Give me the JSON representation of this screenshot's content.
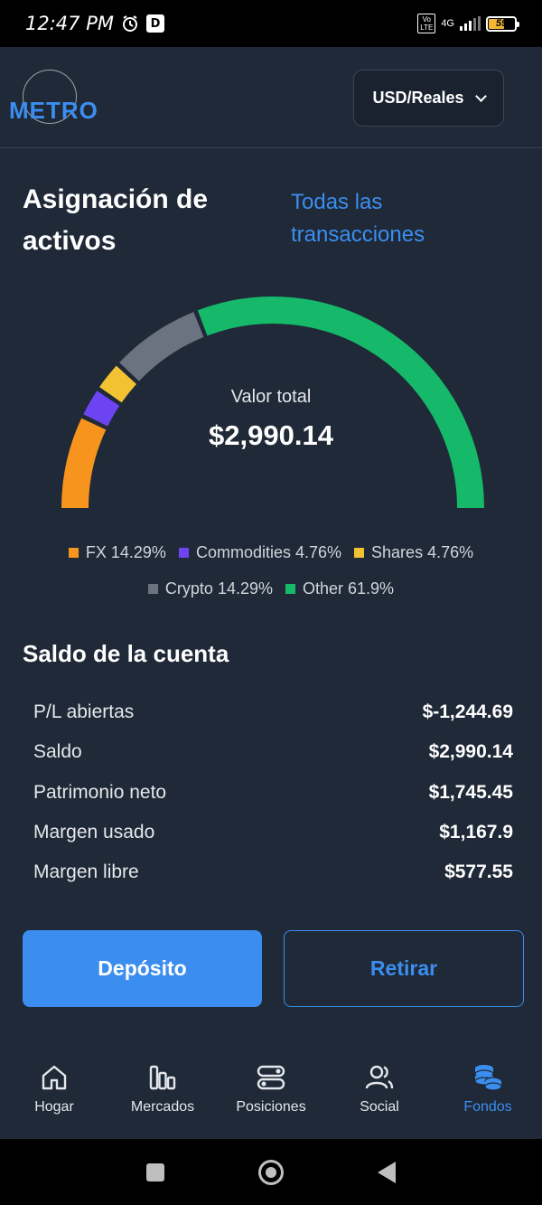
{
  "status_bar": {
    "time": "12:47 PM",
    "network": "4G",
    "battery": "59"
  },
  "header": {
    "logo": "METRO",
    "currency": "USD/Reales"
  },
  "allocation": {
    "title": "Asignación de activos",
    "link": "Todas las transacciones",
    "total_label": "Valor total",
    "total_value": "$2,990.14",
    "segments": [
      {
        "name": "FX",
        "percent": 14.29,
        "label": "FX 14.29%",
        "color": "#f7941d"
      },
      {
        "name": "Commodities",
        "percent": 4.76,
        "label": "Commodities 4.76%",
        "color": "#6d44f2"
      },
      {
        "name": "Shares",
        "percent": 4.76,
        "label": "Shares 4.76%",
        "color": "#f2c233"
      },
      {
        "name": "Crypto",
        "percent": 14.29,
        "label": "Crypto 14.29%",
        "color": "#6b7280"
      },
      {
        "name": "Other",
        "percent": 61.9,
        "label": "Other 61.9%",
        "color": "#16b86a"
      }
    ]
  },
  "balance": {
    "title": "Saldo de la cuenta",
    "rows": [
      {
        "label": "P/L abiertas",
        "value": "$-1,244.69"
      },
      {
        "label": "Saldo",
        "value": "$2,990.14"
      },
      {
        "label": "Patrimonio neto",
        "value": "$1,745.45"
      },
      {
        "label": "Margen usado",
        "value": "$1,167.9"
      },
      {
        "label": "Margen libre",
        "value": "$577.55"
      }
    ]
  },
  "actions": {
    "deposit": "Depósito",
    "withdraw": "Retirar"
  },
  "nav": {
    "items": [
      {
        "label": "Hogar",
        "icon": "home-icon"
      },
      {
        "label": "Mercados",
        "icon": "bar-chart-icon"
      },
      {
        "label": "Posiciones",
        "icon": "toggles-icon"
      },
      {
        "label": "Social",
        "icon": "users-icon"
      },
      {
        "label": "Fondos",
        "icon": "coins-icon",
        "active": true
      }
    ]
  },
  "colors": {
    "background": "#1f2937",
    "accent": "#3b8ef0"
  }
}
